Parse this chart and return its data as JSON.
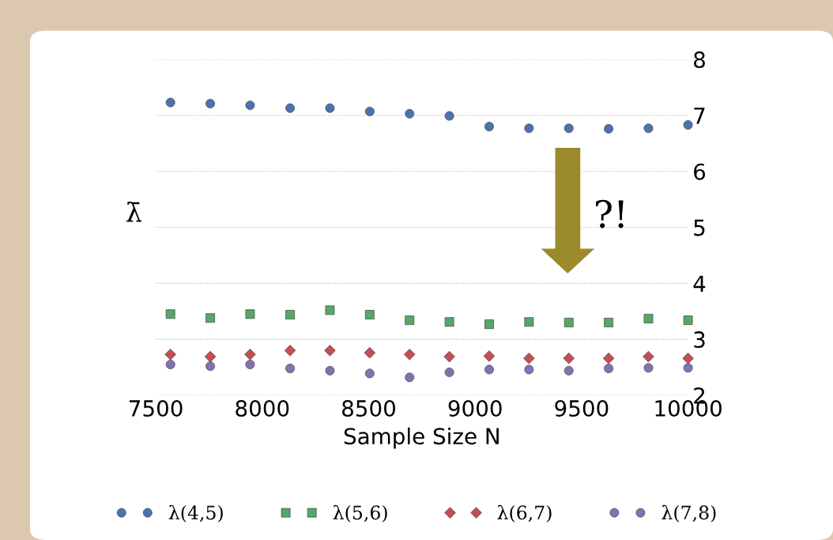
{
  "chart_data": {
    "type": "scatter",
    "xlabel": "Sample Size N",
    "ylabel": "λ̄",
    "x": [
      7569,
      7756,
      7943,
      8131,
      8318,
      8505,
      8692,
      8879,
      9066,
      9253,
      9440,
      9627,
      9814,
      10000
    ],
    "series": [
      {
        "name": "λ(4,5)",
        "color": "#4c72b0",
        "marker": "circle",
        "values": [
          7.23,
          7.21,
          7.18,
          7.13,
          7.13,
          7.07,
          7.03,
          6.99,
          6.8,
          6.77,
          6.77,
          6.76,
          6.77,
          6.83
        ]
      },
      {
        "name": "λ(5,6)",
        "color": "#55a868",
        "marker": "square",
        "values": [
          3.45,
          3.38,
          3.45,
          3.44,
          3.52,
          3.44,
          3.34,
          3.31,
          3.27,
          3.31,
          3.3,
          3.3,
          3.37,
          3.34
        ]
      },
      {
        "name": "λ(6,7)",
        "color": "#c44e52",
        "marker": "diamond",
        "values": [
          2.73,
          2.69,
          2.73,
          2.8,
          2.8,
          2.76,
          2.73,
          2.69,
          2.7,
          2.66,
          2.66,
          2.66,
          2.69,
          2.66
        ]
      },
      {
        "name": "λ(7,8)",
        "color": "#8172b2",
        "marker": "circle",
        "values": [
          2.55,
          2.52,
          2.55,
          2.48,
          2.44,
          2.39,
          2.32,
          2.41,
          2.46,
          2.46,
          2.44,
          2.48,
          2.49,
          2.49
        ]
      }
    ],
    "xlim": [
      7500,
      10000
    ],
    "xticks": [
      7500,
      8000,
      8500,
      9000,
      9500,
      10000
    ],
    "ylim": [
      2,
      8
    ],
    "yticks": [
      2,
      3,
      4,
      5,
      6,
      7,
      8
    ],
    "grid": "y",
    "legend": "bottom",
    "annotations": [
      "?!"
    ]
  }
}
